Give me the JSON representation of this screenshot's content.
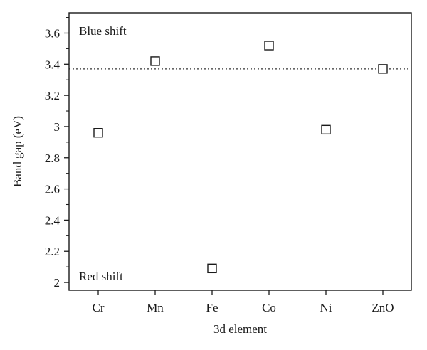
{
  "chart_data": {
    "type": "scatter",
    "title": "",
    "xlabel": "3d element",
    "ylabel": "Band gap (eV)",
    "categories": [
      "Cr",
      "Mn",
      "Fe",
      "Co",
      "Ni",
      "ZnO"
    ],
    "series": [
      {
        "values": [
          2.96,
          3.42,
          2.09,
          3.52,
          2.98,
          3.37
        ]
      }
    ],
    "ylim": [
      1.95,
      3.73
    ],
    "yticks": [
      2,
      2.2,
      2.4,
      2.6,
      2.8,
      3,
      3.2,
      3.4,
      3.6
    ],
    "ytick_labels": [
      "2",
      "2.2",
      "2.4",
      "2.6",
      "2.8",
      "3",
      "3.2",
      "3.4",
      "3.6"
    ],
    "reference_line": {
      "value": 3.37,
      "style": "dotted"
    },
    "annotations": {
      "top": "Blue shift",
      "bottom": "Red shift"
    },
    "marker": "open-square",
    "grid": false,
    "legend": "none"
  }
}
